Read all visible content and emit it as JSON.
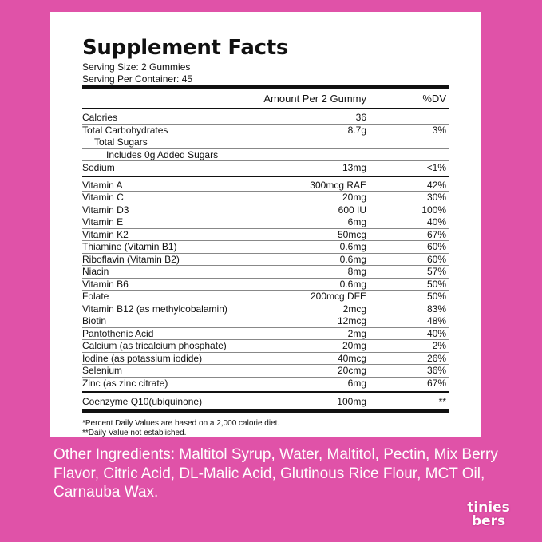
{
  "panel": {
    "title": "Supplement Facts",
    "serving": [
      "Serving Size: 2 Gummies",
      "Serving Per Container: 45"
    ],
    "table": {
      "header": {
        "amount": "Amount Per 2 Gummy",
        "dv": "%DV"
      },
      "sections": [
        [
          {
            "name": "Calories",
            "amount": "36"
          },
          {
            "name": "Total Carbohydrates",
            "amount": "8.7g",
            "dv": "3%",
            "sub": [
              {
                "name": "Total Sugars",
                "sub": [
                  {
                    "name": "Includes 0g Added Sugars"
                  }
                ]
              }
            ]
          },
          {
            "name": "Sodium",
            "amount": "13mg",
            "dv": "<1%"
          }
        ],
        [
          {
            "name": "Vitamin A",
            "amount": "300mcg RAE",
            "dv": "42%"
          },
          {
            "name": "Vitamin C",
            "amount": "20mg",
            "dv": "30%"
          },
          {
            "name": "Vitamin D3",
            "amount": "600 IU",
            "dv": "100%"
          },
          {
            "name": "Vitamin E",
            "amount": "6mg",
            "dv": "40%"
          },
          {
            "name": "Vitamin K2",
            "amount": "50mcg",
            "dv": "67%"
          },
          {
            "name": "Thiamine (Vitamin B1)",
            "amount": "0.6mg",
            "dv": "60%"
          },
          {
            "name": "Riboflavin (Vitamin B2)",
            "amount": "0.6mg",
            "dv": "60%"
          },
          {
            "name": "Niacin",
            "amount": "8mg",
            "dv": "57%"
          },
          {
            "name": "Vitamin B6",
            "amount": "0.6mg",
            "dv": "50%"
          },
          {
            "name": "Folate",
            "amount": "200mcg DFE",
            "dv": "50%"
          },
          {
            "name": "Vitamin B12 (as methylcobalamin)",
            "amount": "2mcg",
            "dv": "83%"
          },
          {
            "name": "Biotin",
            "amount": "12mcg",
            "dv": "48%"
          },
          {
            "name": "Pantothenic Acid",
            "amount": "2mg",
            "dv": "40%"
          },
          {
            "name": "Calcium (as tricalcium phosphate)",
            "amount": "20mg",
            "dv": "2%"
          },
          {
            "name": "Iodine (as potassium iodide)",
            "amount": "40mcg",
            "dv": "26%"
          },
          {
            "name": "Selenium",
            "amount": "20cmg",
            "dv": "36%"
          },
          {
            "name": "Zinc (as zinc citrate)",
            "amount": "6mg",
            "dv": "67%"
          }
        ],
        [
          {
            "name": "Coenzyme Q10(ubiquinone)",
            "amount": "100mg",
            "dv": "**"
          }
        ]
      ]
    },
    "footnotes": [
      "*Percent Daily Values are based on a 2,000 calorie diet.",
      "**Daily Value not established."
    ]
  },
  "other_ingredients": "Other Ingredients: Maltitol Syrup, Water, Maltitol, Pectin, Mix Berry Flavor, Citric Acid, DL-Malic Acid, Glutinous Rice Flour, MCT Oil, Carnauba Wax.",
  "logo": [
    "tinies",
    "bers"
  ]
}
